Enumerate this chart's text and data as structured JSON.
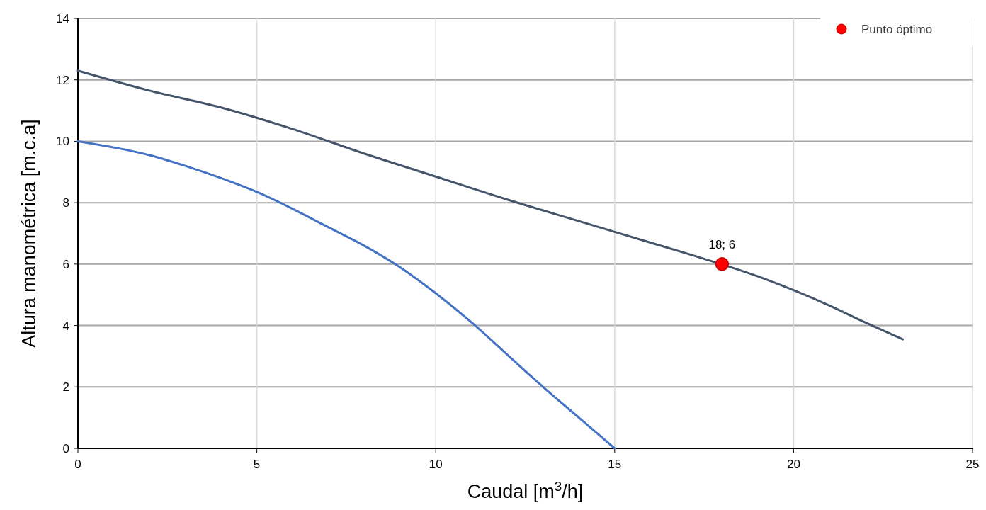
{
  "chart_data": {
    "type": "line",
    "xlabel": "Caudal [m$^{3}$/h]",
    "ylabel": "Altura manométrica [m.c.a]",
    "xlim": [
      0,
      25
    ],
    "xticks": [
      0,
      5,
      10,
      15,
      20,
      25
    ],
    "ylim": [
      0,
      14
    ],
    "yticks": [
      0,
      2,
      4,
      6,
      8,
      10,
      12,
      14
    ],
    "grid": true,
    "legend": "top right",
    "marker": "none",
    "line_style": "solid",
    "series": [
      {
        "color": "#4472c4",
        "x": [
          0,
          1,
          2,
          3,
          4,
          5,
          6,
          7,
          8,
          9,
          10,
          11,
          12,
          13,
          14,
          15
        ],
        "values": [
          10,
          9.8,
          9.55,
          9.2,
          8.8,
          8.35,
          7.8,
          7.2,
          6.6,
          5.9,
          5.05,
          4.1,
          3.05,
          2.0,
          1.0,
          0
        ]
      },
      {
        "color": "#44546a",
        "x": [
          0,
          2,
          4,
          6,
          8,
          10,
          12,
          14,
          16,
          17,
          19,
          20,
          21,
          22,
          23.05
        ],
        "values": [
          12.3,
          11.65,
          11.1,
          10.4,
          9.6,
          8.85,
          8.1,
          7.4,
          6.7,
          6.35,
          5.6,
          5.15,
          4.65,
          4.1,
          3.55
        ]
      },
      {
        "type": "scatter",
        "name": "Punto óptimo",
        "color": "#ff0000",
        "marker": "circle",
        "x": [
          18
        ],
        "values": [
          6
        ],
        "value_labels": [
          "18; 6"
        ]
      }
    ]
  }
}
